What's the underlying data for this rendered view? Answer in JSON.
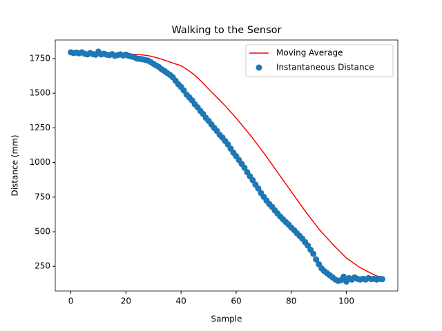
{
  "chart_data": {
    "type": "line",
    "title": "Walking to the Sensor",
    "x_label": "Sample",
    "y_label": "Distance (mm)",
    "x": [
      0,
      1,
      2,
      3,
      4,
      5,
      6,
      7,
      8,
      9,
      10,
      11,
      12,
      13,
      14,
      15,
      16,
      17,
      18,
      19,
      20,
      21,
      22,
      23,
      24,
      25,
      26,
      27,
      28,
      29,
      30,
      31,
      32,
      33,
      34,
      35,
      36,
      37,
      38,
      39,
      40,
      41,
      42,
      43,
      44,
      45,
      46,
      47,
      48,
      49,
      50,
      51,
      52,
      53,
      54,
      55,
      56,
      57,
      58,
      59,
      60,
      61,
      62,
      63,
      64,
      65,
      66,
      67,
      68,
      69,
      70,
      71,
      72,
      73,
      74,
      75,
      76,
      77,
      78,
      79,
      80,
      81,
      82,
      83,
      84,
      85,
      86,
      87,
      88,
      89,
      90,
      91,
      92,
      93,
      94,
      95,
      96,
      97,
      98,
      99,
      100,
      101,
      102,
      103,
      104,
      105,
      106,
      107,
      108,
      109,
      110,
      111,
      112,
      113
    ],
    "series": [
      {
        "name": "Moving Average",
        "type": "line",
        "color": "#ff0000",
        "values": [
          1795,
          1795,
          1794,
          1794,
          1793,
          1793,
          1792,
          1792,
          1791,
          1791,
          1790,
          1790,
          1789,
          1789,
          1788,
          1788,
          1787,
          1786,
          1785,
          1784,
          1783,
          1783,
          1782,
          1781,
          1780,
          1778,
          1776,
          1774,
          1771,
          1767,
          1762,
          1757,
          1751,
          1745,
          1739,
          1732,
          1725,
          1718,
          1711,
          1705,
          1698,
          1686,
          1673,
          1659,
          1645,
          1630,
          1611,
          1592,
          1572,
          1551,
          1530,
          1510,
          1490,
          1470,
          1450,
          1430,
          1409,
          1387,
          1365,
          1342,
          1320,
          1296,
          1272,
          1248,
          1224,
          1200,
          1174,
          1148,
          1122,
          1096,
          1070,
          1042,
          1014,
          986,
          958,
          930,
          902,
          874,
          846,
          818,
          790,
          762,
          734,
          706,
          678,
          650,
          624,
          598,
          572,
          546,
          520,
          498,
          476,
          454,
          432,
          410,
          390,
          370,
          350,
          330,
          310,
          296,
          282,
          268,
          254,
          240,
          230,
          220,
          210,
          200,
          190,
          182,
          173,
          165
        ]
      },
      {
        "name": "Instantaneous Distance",
        "type": "scatter",
        "color": "#1f77b4",
        "values": [
          1795,
          1790,
          1793,
          1788,
          1795,
          1785,
          1780,
          1790,
          1782,
          1778,
          1800,
          1780,
          1785,
          1778,
          1775,
          1782,
          1770,
          1775,
          1780,
          1772,
          1778,
          1770,
          1765,
          1760,
          1750,
          1748,
          1745,
          1740,
          1735,
          1725,
          1712,
          1700,
          1688,
          1672,
          1660,
          1645,
          1632,
          1615,
          1590,
          1565,
          1545,
          1520,
          1490,
          1470,
          1448,
          1420,
          1398,
          1372,
          1350,
          1322,
          1300,
          1275,
          1250,
          1228,
          1200,
          1180,
          1155,
          1130,
          1100,
          1070,
          1045,
          1018,
          990,
          962,
          930,
          900,
          872,
          840,
          812,
          780,
          752,
          725,
          700,
          680,
          655,
          632,
          610,
          590,
          570,
          552,
          530,
          512,
          490,
          470,
          450,
          425,
          400,
          370,
          340,
          300,
          265,
          235,
          215,
          200,
          185,
          170,
          155,
          145,
          150,
          175,
          140,
          165,
          155,
          170,
          160,
          155,
          160,
          155,
          165,
          158,
          160,
          155,
          160,
          158
        ]
      }
    ],
    "xlim": [
      -5.65,
      118.65
    ],
    "xticks": [
      0,
      20,
      40,
      60,
      80,
      100
    ],
    "ylim": [
      72,
      1884
    ],
    "yticks": [
      250,
      500,
      750,
      1000,
      1250,
      1500,
      1750
    ],
    "legend": "upper right",
    "grid": false
  }
}
